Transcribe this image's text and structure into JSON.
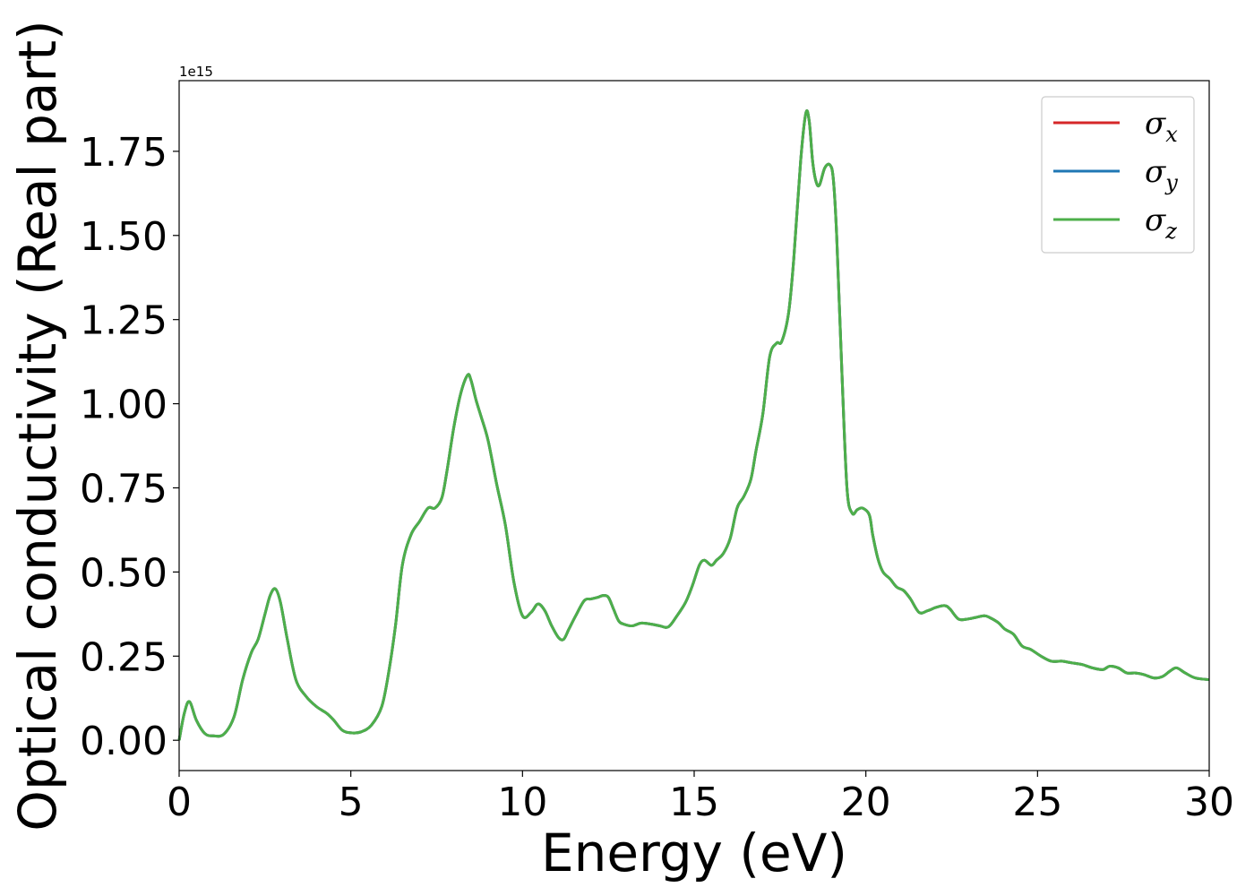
{
  "chart_data": {
    "type": "line",
    "title": "",
    "xlabel": "Energy (eV)",
    "ylabel": "Optical conductivity (Real part)",
    "y_offset_label": "1e15",
    "xlim": [
      0,
      30
    ],
    "ylim": [
      -0.09,
      1.96
    ],
    "xticks": [
      0,
      5,
      10,
      15,
      20,
      25,
      30
    ],
    "xtick_labels": [
      "0",
      "5",
      "10",
      "15",
      "20",
      "25",
      "30"
    ],
    "yticks": [
      0.0,
      0.25,
      0.5,
      0.75,
      1.0,
      1.25,
      1.5,
      1.75
    ],
    "ytick_labels": [
      "0.00",
      "0.25",
      "0.50",
      "0.75",
      "1.00",
      "1.25",
      "1.50",
      "1.75"
    ],
    "grid": false,
    "legend_position": "top-right",
    "series": [
      {
        "name": "σx",
        "label_base": "σ",
        "label_sub": "x",
        "color": "#d62728",
        "x": [
          0,
          0.15,
          0.3,
          0.5,
          0.75,
          1.0,
          1.3,
          1.6,
          1.85,
          2.1,
          2.3,
          2.5,
          2.65,
          2.8,
          2.95,
          3.15,
          3.4,
          3.7,
          4.0,
          4.3,
          4.5,
          4.75,
          5.0,
          5.3,
          5.6,
          5.9,
          6.1,
          6.3,
          6.5,
          6.75,
          7.0,
          7.25,
          7.45,
          7.65,
          7.8,
          8.0,
          8.2,
          8.4,
          8.5,
          8.65,
          8.8,
          9.0,
          9.25,
          9.5,
          9.75,
          10.0,
          10.25,
          10.45,
          10.65,
          10.85,
          11.05,
          11.2,
          11.35,
          11.55,
          11.8,
          12.0,
          12.2,
          12.35,
          12.5,
          12.65,
          12.8,
          12.95,
          13.2,
          13.45,
          13.75,
          14.0,
          14.25,
          14.5,
          14.75,
          14.95,
          15.15,
          15.3,
          15.5,
          15.65,
          15.85,
          16.05,
          16.25,
          16.45,
          16.65,
          16.8,
          17.0,
          17.2,
          17.4,
          17.55,
          17.75,
          17.9,
          18.1,
          18.25,
          18.35,
          18.45,
          18.55,
          18.65,
          18.8,
          18.95,
          19.05,
          19.15,
          19.3,
          19.45,
          19.6,
          19.75,
          19.9,
          20.1,
          20.2,
          20.35,
          20.5,
          20.7,
          20.9,
          21.1,
          21.3,
          21.55,
          21.8,
          22.05,
          22.3,
          22.45,
          22.7,
          22.95,
          23.2,
          23.45,
          23.6,
          23.85,
          24.05,
          24.3,
          24.55,
          24.8,
          25.1,
          25.4,
          25.7,
          26.0,
          26.3,
          26.6,
          26.9,
          27.1,
          27.35,
          27.6,
          27.85,
          28.1,
          28.4,
          28.65,
          28.85,
          29.05,
          29.3,
          29.6,
          30.0
        ],
        "y": [
          0.0,
          0.08,
          0.115,
          0.06,
          0.02,
          0.013,
          0.018,
          0.07,
          0.18,
          0.26,
          0.3,
          0.375,
          0.43,
          0.45,
          0.41,
          0.3,
          0.18,
          0.13,
          0.1,
          0.08,
          0.06,
          0.03,
          0.022,
          0.025,
          0.045,
          0.1,
          0.2,
          0.34,
          0.52,
          0.61,
          0.65,
          0.69,
          0.69,
          0.72,
          0.8,
          0.93,
          1.03,
          1.085,
          1.07,
          1.01,
          0.96,
          0.89,
          0.76,
          0.64,
          0.47,
          0.37,
          0.38,
          0.405,
          0.385,
          0.34,
          0.305,
          0.3,
          0.33,
          0.37,
          0.415,
          0.42,
          0.425,
          0.43,
          0.425,
          0.39,
          0.355,
          0.345,
          0.34,
          0.348,
          0.345,
          0.34,
          0.337,
          0.37,
          0.41,
          0.46,
          0.52,
          0.535,
          0.52,
          0.535,
          0.555,
          0.6,
          0.69,
          0.725,
          0.775,
          0.86,
          0.97,
          1.14,
          1.18,
          1.185,
          1.27,
          1.43,
          1.72,
          1.862,
          1.84,
          1.72,
          1.66,
          1.65,
          1.7,
          1.71,
          1.67,
          1.5,
          1.1,
          0.75,
          0.675,
          0.685,
          0.69,
          0.67,
          0.61,
          0.54,
          0.5,
          0.48,
          0.455,
          0.445,
          0.42,
          0.38,
          0.385,
          0.395,
          0.4,
          0.39,
          0.36,
          0.36,
          0.365,
          0.37,
          0.365,
          0.35,
          0.33,
          0.315,
          0.28,
          0.27,
          0.25,
          0.235,
          0.235,
          0.23,
          0.225,
          0.215,
          0.21,
          0.22,
          0.215,
          0.2,
          0.2,
          0.195,
          0.185,
          0.19,
          0.205,
          0.215,
          0.2,
          0.185,
          0.18
        ]
      },
      {
        "name": "σy",
        "label_base": "σ",
        "label_sub": "y",
        "color": "#1f77b4",
        "x": [
          0,
          0.15,
          0.3,
          0.5,
          0.75,
          1.0,
          1.3,
          1.6,
          1.85,
          2.1,
          2.3,
          2.5,
          2.65,
          2.8,
          2.95,
          3.15,
          3.4,
          3.7,
          4.0,
          4.3,
          4.5,
          4.75,
          5.0,
          5.3,
          5.6,
          5.9,
          6.1,
          6.3,
          6.5,
          6.75,
          7.0,
          7.25,
          7.45,
          7.65,
          7.8,
          8.0,
          8.2,
          8.4,
          8.5,
          8.65,
          8.8,
          9.0,
          9.25,
          9.5,
          9.75,
          10.0,
          10.25,
          10.45,
          10.65,
          10.85,
          11.05,
          11.2,
          11.35,
          11.55,
          11.8,
          12.0,
          12.2,
          12.35,
          12.5,
          12.65,
          12.8,
          12.95,
          13.2,
          13.45,
          13.75,
          14.0,
          14.25,
          14.5,
          14.75,
          14.95,
          15.15,
          15.3,
          15.5,
          15.65,
          15.85,
          16.05,
          16.25,
          16.45,
          16.65,
          16.8,
          17.0,
          17.2,
          17.4,
          17.55,
          17.75,
          17.9,
          18.1,
          18.25,
          18.35,
          18.45,
          18.55,
          18.65,
          18.8,
          18.95,
          19.05,
          19.15,
          19.3,
          19.45,
          19.6,
          19.75,
          19.9,
          20.1,
          20.2,
          20.35,
          20.5,
          20.7,
          20.9,
          21.1,
          21.3,
          21.55,
          21.8,
          22.05,
          22.3,
          22.45,
          22.7,
          22.95,
          23.2,
          23.45,
          23.6,
          23.85,
          24.05,
          24.3,
          24.55,
          24.8,
          25.1,
          25.4,
          25.7,
          26.0,
          26.3,
          26.6,
          26.9,
          27.1,
          27.35,
          27.6,
          27.85,
          28.1,
          28.4,
          28.65,
          28.85,
          29.05,
          29.3,
          29.6,
          30.0
        ],
        "y": [
          0.0,
          0.08,
          0.115,
          0.06,
          0.02,
          0.013,
          0.018,
          0.07,
          0.18,
          0.26,
          0.3,
          0.375,
          0.43,
          0.45,
          0.41,
          0.3,
          0.18,
          0.13,
          0.1,
          0.08,
          0.06,
          0.03,
          0.022,
          0.025,
          0.045,
          0.1,
          0.2,
          0.34,
          0.52,
          0.61,
          0.65,
          0.69,
          0.69,
          0.72,
          0.8,
          0.93,
          1.03,
          1.085,
          1.07,
          1.01,
          0.96,
          0.89,
          0.76,
          0.64,
          0.47,
          0.37,
          0.38,
          0.405,
          0.385,
          0.34,
          0.305,
          0.3,
          0.33,
          0.37,
          0.415,
          0.42,
          0.425,
          0.43,
          0.425,
          0.39,
          0.355,
          0.345,
          0.34,
          0.348,
          0.345,
          0.34,
          0.337,
          0.37,
          0.41,
          0.46,
          0.52,
          0.535,
          0.52,
          0.535,
          0.555,
          0.6,
          0.69,
          0.725,
          0.775,
          0.86,
          0.97,
          1.14,
          1.18,
          1.185,
          1.27,
          1.43,
          1.72,
          1.862,
          1.84,
          1.72,
          1.66,
          1.65,
          1.7,
          1.71,
          1.67,
          1.5,
          1.1,
          0.75,
          0.675,
          0.685,
          0.69,
          0.67,
          0.61,
          0.54,
          0.5,
          0.48,
          0.455,
          0.445,
          0.42,
          0.38,
          0.385,
          0.395,
          0.4,
          0.39,
          0.36,
          0.36,
          0.365,
          0.37,
          0.365,
          0.35,
          0.33,
          0.315,
          0.28,
          0.27,
          0.25,
          0.235,
          0.235,
          0.23,
          0.225,
          0.215,
          0.21,
          0.22,
          0.215,
          0.2,
          0.2,
          0.195,
          0.185,
          0.19,
          0.205,
          0.215,
          0.2,
          0.185,
          0.18
        ]
      },
      {
        "name": "σz",
        "label_base": "σ",
        "label_sub": "z",
        "color": "#4daf4a",
        "x": [
          0,
          0.15,
          0.3,
          0.5,
          0.75,
          1.0,
          1.3,
          1.6,
          1.85,
          2.1,
          2.3,
          2.5,
          2.65,
          2.8,
          2.95,
          3.15,
          3.4,
          3.7,
          4.0,
          4.3,
          4.5,
          4.75,
          5.0,
          5.3,
          5.6,
          5.9,
          6.1,
          6.3,
          6.5,
          6.75,
          7.0,
          7.25,
          7.45,
          7.65,
          7.8,
          8.0,
          8.2,
          8.4,
          8.5,
          8.65,
          8.8,
          9.0,
          9.25,
          9.5,
          9.75,
          10.0,
          10.25,
          10.45,
          10.65,
          10.85,
          11.05,
          11.2,
          11.35,
          11.55,
          11.8,
          12.0,
          12.2,
          12.35,
          12.5,
          12.65,
          12.8,
          12.95,
          13.2,
          13.45,
          13.75,
          14.0,
          14.25,
          14.5,
          14.75,
          14.95,
          15.15,
          15.3,
          15.5,
          15.65,
          15.85,
          16.05,
          16.25,
          16.45,
          16.65,
          16.8,
          17.0,
          17.2,
          17.4,
          17.55,
          17.75,
          17.9,
          18.1,
          18.25,
          18.35,
          18.45,
          18.55,
          18.65,
          18.8,
          18.95,
          19.05,
          19.15,
          19.3,
          19.45,
          19.6,
          19.75,
          19.9,
          20.1,
          20.2,
          20.35,
          20.5,
          20.7,
          20.9,
          21.1,
          21.3,
          21.55,
          21.8,
          22.05,
          22.3,
          22.45,
          22.7,
          22.95,
          23.2,
          23.45,
          23.6,
          23.85,
          24.05,
          24.3,
          24.55,
          24.8,
          25.1,
          25.4,
          25.7,
          26.0,
          26.3,
          26.6,
          26.9,
          27.1,
          27.35,
          27.6,
          27.85,
          28.1,
          28.4,
          28.65,
          28.85,
          29.05,
          29.3,
          29.6,
          30.0
        ],
        "y": [
          0.0,
          0.08,
          0.115,
          0.06,
          0.02,
          0.013,
          0.018,
          0.07,
          0.18,
          0.26,
          0.3,
          0.375,
          0.43,
          0.45,
          0.41,
          0.3,
          0.18,
          0.13,
          0.1,
          0.08,
          0.06,
          0.03,
          0.022,
          0.025,
          0.045,
          0.1,
          0.2,
          0.34,
          0.52,
          0.61,
          0.65,
          0.69,
          0.69,
          0.72,
          0.8,
          0.93,
          1.03,
          1.085,
          1.07,
          1.01,
          0.96,
          0.89,
          0.76,
          0.64,
          0.47,
          0.37,
          0.38,
          0.405,
          0.385,
          0.34,
          0.305,
          0.3,
          0.33,
          0.37,
          0.415,
          0.42,
          0.425,
          0.43,
          0.425,
          0.39,
          0.355,
          0.345,
          0.34,
          0.348,
          0.345,
          0.34,
          0.337,
          0.37,
          0.41,
          0.46,
          0.52,
          0.535,
          0.52,
          0.535,
          0.555,
          0.6,
          0.69,
          0.725,
          0.775,
          0.86,
          0.97,
          1.14,
          1.18,
          1.185,
          1.27,
          1.43,
          1.72,
          1.862,
          1.84,
          1.72,
          1.66,
          1.65,
          1.7,
          1.71,
          1.67,
          1.5,
          1.1,
          0.75,
          0.675,
          0.685,
          0.69,
          0.67,
          0.61,
          0.54,
          0.5,
          0.48,
          0.455,
          0.445,
          0.42,
          0.38,
          0.385,
          0.395,
          0.4,
          0.39,
          0.36,
          0.36,
          0.365,
          0.37,
          0.365,
          0.35,
          0.33,
          0.315,
          0.28,
          0.27,
          0.25,
          0.235,
          0.235,
          0.23,
          0.225,
          0.215,
          0.21,
          0.22,
          0.215,
          0.2,
          0.2,
          0.195,
          0.185,
          0.19,
          0.205,
          0.215,
          0.2,
          0.185,
          0.18
        ]
      }
    ]
  }
}
